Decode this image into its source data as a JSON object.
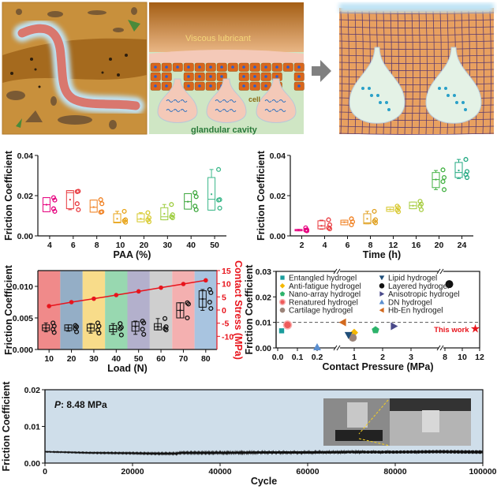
{
  "illustration": {
    "label_lubricant": "Viscous lubricant",
    "label_cell": "cell",
    "label_cavity": "glandular cavity",
    "colors": {
      "soil": "#c8903c",
      "worm": "#d9776e",
      "mucus": "#f4c9b8",
      "cell": "#d9661c",
      "tissue": "#cfe6c4",
      "hydrogel_grid": "#e8a060",
      "water": "#bfe3f5"
    }
  },
  "chart_data": [
    {
      "id": "paa",
      "type": "box",
      "xlabel": "PAA (%)",
      "ylabel": "Friction Coefficient",
      "ylim": [
        0,
        0.04
      ],
      "yticks": [
        "0.00",
        "0.02",
        "0.04"
      ],
      "categories": [
        "4",
        "6",
        "8",
        "10",
        "20",
        "30",
        "40",
        "50"
      ],
      "colors": [
        "#e6007e",
        "#e8383d",
        "#f07f1f",
        "#e8a317",
        "#d6c92a",
        "#9ccc3c",
        "#3aa63a",
        "#3cb88a"
      ],
      "boxes": [
        {
          "min": 0.012,
          "q1": 0.012,
          "median": 0.0155,
          "q3": 0.019,
          "max": 0.019,
          "mean": 0.0155,
          "points": [
            0.019,
            0.0178,
            0.0135,
            0.0122
          ]
        },
        {
          "min": 0.013,
          "q1": 0.0135,
          "median": 0.0215,
          "q3": 0.0225,
          "max": 0.0225,
          "mean": 0.018,
          "points": [
            0.022,
            0.0222,
            0.016,
            0.013
          ]
        },
        {
          "min": 0.0118,
          "q1": 0.0118,
          "median": 0.0142,
          "q3": 0.0178,
          "max": 0.0178,
          "mean": 0.0143,
          "points": [
            0.018,
            0.016,
            0.0118,
            0.012
          ]
        },
        {
          "min": 0.0065,
          "q1": 0.0065,
          "median": 0.0068,
          "q3": 0.011,
          "max": 0.0122,
          "mean": 0.0085,
          "points": [
            0.0122,
            0.008,
            0.0075,
            0.0068
          ]
        },
        {
          "min": 0.007,
          "q1": 0.007,
          "median": 0.0083,
          "q3": 0.011,
          "max": 0.0115,
          "mean": 0.0085,
          "points": [
            0.0115,
            0.009,
            0.008,
            0.007
          ]
        },
        {
          "min": 0.008,
          "q1": 0.008,
          "median": 0.0095,
          "q3": 0.014,
          "max": 0.0156,
          "mean": 0.011,
          "points": [
            0.0156,
            0.0105,
            0.0095,
            0.009
          ]
        },
        {
          "min": 0.0133,
          "q1": 0.0133,
          "median": 0.017,
          "q3": 0.021,
          "max": 0.021,
          "mean": 0.017,
          "points": [
            0.0215,
            0.0195,
            0.0148,
            0.013
          ]
        },
        {
          "min": 0.0128,
          "q1": 0.0128,
          "median": 0.0182,
          "q3": 0.029,
          "max": 0.033,
          "mean": 0.0207,
          "points": [
            0.033,
            0.018,
            0.0178,
            0.0138
          ]
        }
      ]
    },
    {
      "id": "time",
      "type": "box",
      "xlabel": "Time (h)",
      "ylabel": "Friction Coefficient",
      "ylim": [
        0,
        0.04
      ],
      "yticks": [
        "0.00",
        "0.02",
        "0.04"
      ],
      "categories": [
        "2",
        "4",
        "6",
        "8",
        "12",
        "16",
        "20",
        "24"
      ],
      "colors": [
        "#e6007e",
        "#e8383d",
        "#f07f1f",
        "#e0a020",
        "#d8c830",
        "#a6cc40",
        "#40b040",
        "#20a880"
      ],
      "boxes": [
        {
          "min": 0.0025,
          "q1": 0.0025,
          "median": 0.003,
          "q3": 0.0032,
          "max": 0.0032,
          "mean": 0.003,
          "points": [
            0.004,
            0.003,
            0.0028,
            0.0025
          ]
        },
        {
          "min": 0.0033,
          "q1": 0.0035,
          "median": 0.005,
          "q3": 0.0075,
          "max": 0.0078,
          "mean": 0.005,
          "points": [
            0.008,
            0.0055,
            0.004,
            0.0035
          ]
        },
        {
          "min": 0.0055,
          "q1": 0.0055,
          "median": 0.0068,
          "q3": 0.0078,
          "max": 0.0078,
          "mean": 0.0068,
          "points": [
            0.0085,
            0.007,
            0.0055
          ]
        },
        {
          "min": 0.006,
          "q1": 0.006,
          "median": 0.0065,
          "q3": 0.011,
          "max": 0.0122,
          "mean": 0.0085,
          "points": [
            0.0122,
            0.008,
            0.0072,
            0.0065
          ]
        },
        {
          "min": 0.0122,
          "q1": 0.0122,
          "median": 0.0132,
          "q3": 0.0143,
          "max": 0.0143,
          "mean": 0.0132,
          "points": [
            0.0148,
            0.014,
            0.0128,
            0.012
          ]
        },
        {
          "min": 0.0135,
          "q1": 0.0135,
          "median": 0.015,
          "q3": 0.0168,
          "max": 0.0168,
          "mean": 0.015,
          "points": [
            0.0172,
            0.0158,
            0.0148,
            0.013
          ]
        },
        {
          "min": 0.023,
          "q1": 0.024,
          "median": 0.028,
          "q3": 0.0315,
          "max": 0.0325,
          "mean": 0.028,
          "points": [
            0.0328,
            0.029,
            0.027,
            0.023
          ]
        },
        {
          "min": 0.0285,
          "q1": 0.029,
          "median": 0.0315,
          "q3": 0.0365,
          "max": 0.038,
          "mean": 0.0325,
          "points": [
            0.038,
            0.032,
            0.0305,
            0.029
          ]
        }
      ]
    },
    {
      "id": "load",
      "type": "box+line",
      "xlabel": "Load (N)",
      "ylabel": "Friction Coefficient",
      "ylabel_right": "Contact Stress (MPa)",
      "ylim": [
        0,
        0.0125
      ],
      "yticks": [
        "0.000",
        "0.005",
        "0.010"
      ],
      "ylim_right": [
        -15,
        15
      ],
      "yticks_right": [
        "-10",
        "-5",
        "0",
        "5",
        "10",
        "15"
      ],
      "right_color": "#e8141c",
      "categories": [
        "10",
        "20",
        "30",
        "40",
        "50",
        "60",
        "70",
        "80"
      ],
      "band_colors": [
        "#f08a8a",
        "#94aec6",
        "#f8dc8a",
        "#98d8b0",
        "#b3b0cc",
        "#cfcfcf",
        "#f4b0b0",
        "#a8c4e0"
      ],
      "boxes": [
        {
          "min": 0.0028,
          "q1": 0.003,
          "median": 0.0034,
          "q3": 0.0039,
          "max": 0.0042,
          "mean": 0.0034,
          "points": [
            0.0042,
            0.0037,
            0.0032,
            0.0027
          ]
        },
        {
          "min": 0.0029,
          "q1": 0.003,
          "median": 0.0034,
          "q3": 0.0039,
          "max": 0.0039,
          "mean": 0.0034,
          "points": [
            0.0038,
            0.0036,
            0.0033,
            0.0028
          ]
        },
        {
          "min": 0.0026,
          "q1": 0.0029,
          "median": 0.0034,
          "q3": 0.004,
          "max": 0.0041,
          "mean": 0.0034,
          "points": [
            0.0042,
            0.0037,
            0.0031,
            0.0026
          ]
        },
        {
          "min": 0.0024,
          "q1": 0.0028,
          "median": 0.0032,
          "q3": 0.0038,
          "max": 0.0041,
          "mean": 0.0033,
          "points": [
            0.0041,
            0.0035,
            0.0033,
            0.0023
          ]
        },
        {
          "min": 0.0024,
          "q1": 0.0029,
          "median": 0.0037,
          "q3": 0.0044,
          "max": 0.0045,
          "mean": 0.0036,
          "points": [
            0.0045,
            0.0042,
            0.0032,
            0.0024
          ]
        },
        {
          "min": 0.0031,
          "q1": 0.0031,
          "median": 0.0036,
          "q3": 0.0041,
          "max": 0.0049,
          "mean": 0.0036,
          "points": [
            0.0049,
            0.0036,
            0.0033,
            0.0031
          ]
        },
        {
          "min": 0.005,
          "q1": 0.005,
          "median": 0.0062,
          "q3": 0.0074,
          "max": 0.0074,
          "mean": 0.0062,
          "points": [
            0.0074,
            0.0072,
            0.005
          ]
        },
        {
          "min": 0.0062,
          "q1": 0.0067,
          "median": 0.008,
          "q3": 0.0093,
          "max": 0.0095,
          "mean": 0.008,
          "points": [
            0.0095,
            0.009,
            0.0075,
            0.0065
          ]
        }
      ],
      "contact_stress": [
        1.5,
        3.0,
        4.3,
        5.7,
        7.1,
        8.5,
        9.9,
        11.3
      ]
    },
    {
      "id": "comparison",
      "type": "scatter",
      "xlabel": "Contact Pressure (MPa)",
      "ylabel": "Friction Coefficient",
      "ylim": [
        0,
        0.03
      ],
      "yticks": [
        "0.00",
        "0.01",
        "0.02",
        "0.03"
      ],
      "x_axis_breaks": [
        [
          0,
          0.3
        ],
        [
          0.5,
          3.9
        ],
        [
          7.8,
          12
        ]
      ],
      "xticks": [
        "0.0",
        "0.1",
        "0.2",
        "1",
        "2",
        "3",
        "8",
        "10",
        "12"
      ],
      "reference_line": 0.01,
      "annotation": "This work",
      "series": [
        {
          "name": "Entangled hydrogel",
          "marker": "square",
          "color": "#1a9d9d",
          "x": 0.02,
          "y": 0.0067
        },
        {
          "name": "Anti-fatigue hydrogel",
          "marker": "diamond",
          "color": "#f5b800",
          "x": 1.0,
          "y": 0.006
        },
        {
          "name": "Nano-array hydrogel",
          "marker": "pentagon",
          "color": "#2db36b",
          "x": 1.75,
          "y": 0.007
        },
        {
          "name": "Renatured hydrogel",
          "marker": "circle-half",
          "color": "#ef5a5a",
          "x": 0.05,
          "y": 0.009
        },
        {
          "name": "Cartilage hydrogel",
          "marker": "circle",
          "color": "#9b8479",
          "x": 0.95,
          "y": 0.004
        },
        {
          "name": "Lipid hydrogel",
          "marker": "triangle-down",
          "color": "#1f4e79",
          "x": 0.8,
          "y": 0.005
        },
        {
          "name": "Layered hydrogel",
          "marker": "circle",
          "color": "#111111",
          "x": 8.5,
          "y": 0.025
        },
        {
          "name": "Anisotropic hydrogel",
          "marker": "triangle-right",
          "color": "#4a4a8a",
          "x": 2.4,
          "y": 0.0085
        },
        {
          "name": "DN hydrogel",
          "marker": "triangle-up",
          "color": "#5b8fd0",
          "x": 0.2,
          "y": 0.0003
        },
        {
          "name": "Hb-En hydrogel",
          "marker": "triangle-left",
          "color": "#d2691e",
          "x": 0.6,
          "y": 0.01
        },
        {
          "name": "This work",
          "marker": "star",
          "color": "#e8141c",
          "x": 11.5,
          "y": 0.0075
        }
      ]
    },
    {
      "id": "cycle",
      "type": "line",
      "xlabel": "Cycle",
      "ylabel": "Friction Coefficient",
      "xlim": [
        0,
        100000
      ],
      "ylim": [
        0,
        0.02
      ],
      "xticks": [
        "0",
        "20000",
        "40000",
        "60000",
        "80000",
        "100000"
      ],
      "yticks": [
        "0.00",
        "0.01",
        "0.02"
      ],
      "annotation_italic": "P",
      "annotation": ": 8.48 MPa",
      "background": "#cfdeea",
      "x": [
        0,
        10000,
        20000,
        25000,
        30000,
        31000,
        40000,
        50000,
        60000,
        70000,
        80000,
        90000,
        100000
      ],
      "y": [
        0.0031,
        0.0028,
        0.0027,
        0.0026,
        0.0026,
        0.0028,
        0.0028,
        0.0029,
        0.0029,
        0.003,
        0.003,
        0.0031,
        0.003
      ]
    }
  ]
}
